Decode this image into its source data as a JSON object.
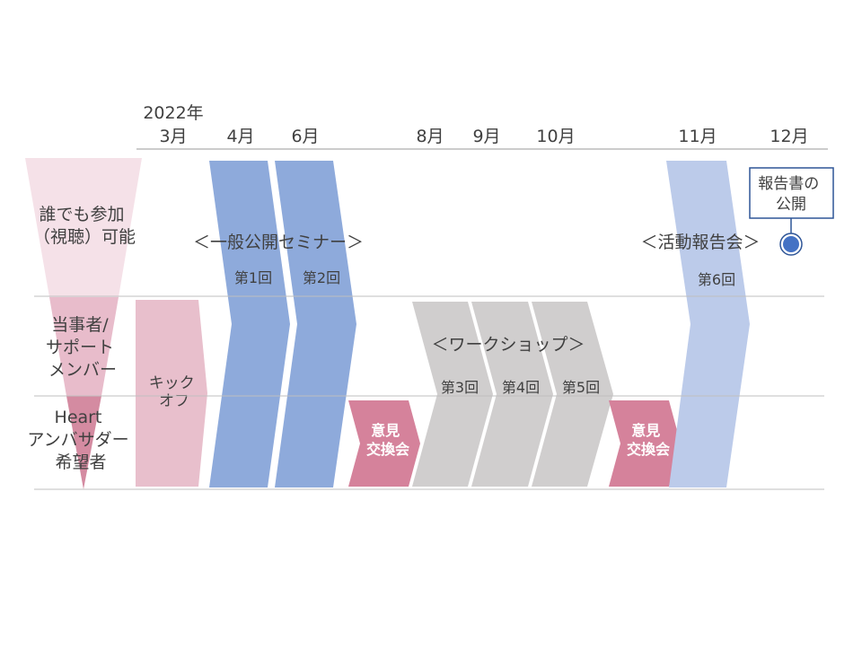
{
  "header": {
    "year_label": "2022年",
    "months": [
      "3月",
      "4月",
      "6月",
      "8月",
      "9月",
      "10月",
      "11月",
      "12月"
    ]
  },
  "rows": {
    "public": [
      "誰でも参加",
      "（視聴）可能"
    ],
    "members": [
      "当事者/",
      "サポート",
      "メンバー"
    ],
    "heart": [
      "Heart",
      "アンバサダー",
      "希望者"
    ]
  },
  "events": {
    "kickoff": [
      "キック",
      "オフ"
    ],
    "seminar_title": "＜一般公開セミナー＞",
    "seminar_1": "第1回",
    "seminar_2": "第2回",
    "exchange_1": [
      "意見",
      "交換会"
    ],
    "workshop_title": "＜ワークショップ＞",
    "workshop_3": "第3回",
    "workshop_4": "第4回",
    "workshop_5": "第5回",
    "exchange_2": [
      "意見",
      "交換会"
    ],
    "report_meeting_title": "＜活動報告会＞",
    "report_meeting_6": "第6回",
    "report_publish": [
      "報告書の",
      "公開"
    ]
  },
  "colors": {
    "funnel_light": "#f5e1e8",
    "funnel_mid": "#e8bccb",
    "funnel_dark": "#d48ba1",
    "kickoff": "#e8bfcc",
    "seminar": "#8eaadb",
    "exchange": "#d5829b",
    "workshop": "#d0cece",
    "report": "#bccbea",
    "marker": "#4472c4",
    "marker_border": "#2e5597",
    "line": "#bfbfbf",
    "text": "#404040"
  }
}
